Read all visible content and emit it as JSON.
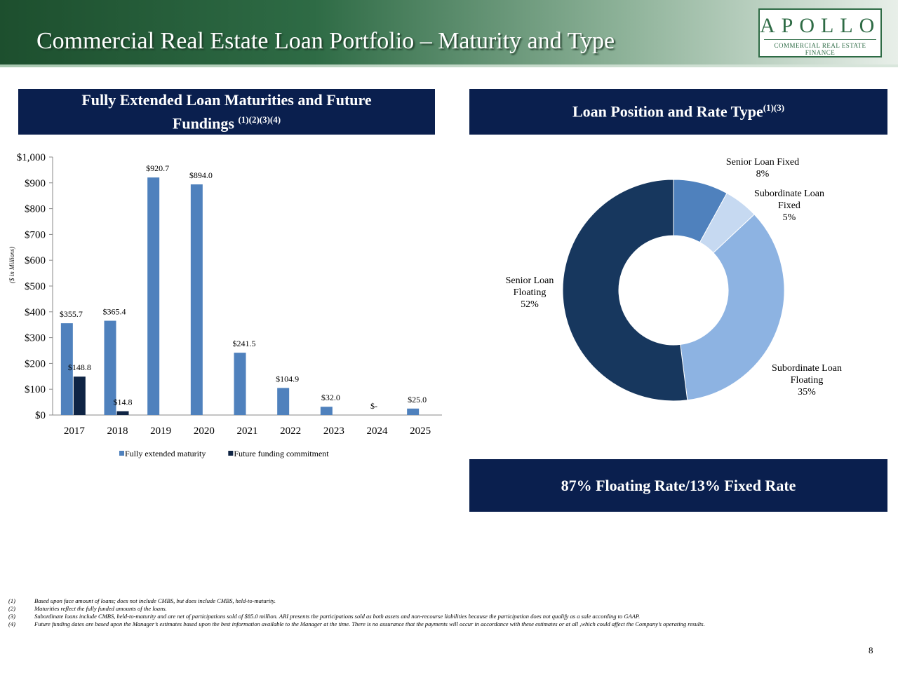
{
  "header": {
    "title": "Commercial Real Estate Loan Portfolio – Maturity and Type",
    "logo_main": "APOLLO",
    "logo_sub": "COMMERCIAL REAL ESTATE FINANCE"
  },
  "chart_data": [
    {
      "type": "bar",
      "title": "Fully Extended Loan Maturities and Future Fundings",
      "title_note": "(1)(2)(3)(4)",
      "y_label": "($ in Millions)",
      "categories": [
        "2017",
        "2018",
        "2019",
        "2020",
        "2021",
        "2022",
        "2023",
        "2024",
        "2025"
      ],
      "series": [
        {
          "name": "Fully extended maturity",
          "color": "#4f81bd",
          "values": [
            355.7,
            365.4,
            920.7,
            894.0,
            241.5,
            104.9,
            32.0,
            0,
            25.0
          ],
          "value_labels": [
            "$355.7",
            "$365.4",
            "$920.7",
            "$894.0",
            "$241.5",
            "$104.9",
            "$32.0",
            "$-",
            "$25.0"
          ]
        },
        {
          "name": "Future funding commitment",
          "color": "#0f2444",
          "values": [
            148.8,
            14.8,
            null,
            null,
            null,
            null,
            null,
            null,
            null
          ],
          "value_labels": [
            "$148.8",
            "$14.8",
            null,
            null,
            null,
            null,
            null,
            null,
            null
          ]
        }
      ],
      "ylim": [
        0,
        1000
      ],
      "yticks": [
        {
          "value": 0,
          "label": "$0"
        },
        {
          "value": 100,
          "label": "$100"
        },
        {
          "value": 200,
          "label": "$200"
        },
        {
          "value": 300,
          "label": "$300"
        },
        {
          "value": 400,
          "label": "$400"
        },
        {
          "value": 500,
          "label": "$500"
        },
        {
          "value": 600,
          "label": "$600"
        },
        {
          "value": 700,
          "label": "$700"
        },
        {
          "value": 800,
          "label": "$800"
        },
        {
          "value": 900,
          "label": "$900"
        },
        {
          "value": 1000,
          "label": "$1,000"
        }
      ],
      "grid": false,
      "legend": "bottom"
    },
    {
      "type": "pie",
      "title": "Loan Position and Rate Type",
      "title_note": "(1)(3)",
      "categories": [
        "Senior Loan Fixed",
        "Subordinate Loan Fixed",
        "Subordinate Loan Floating",
        "Senior Loan Floating"
      ],
      "values": [
        8,
        5,
        35,
        52
      ],
      "value_labels": [
        "8%",
        "5%",
        "35%",
        "52%"
      ],
      "colors": [
        "#4f81bd",
        "#c6d9f1",
        "#8db3e2",
        "#17375e"
      ],
      "donut": true,
      "annotation": "87% Floating Rate/13% Fixed Rate"
    }
  ],
  "footnotes": [
    {
      "marker": "(1)",
      "text": "Based upon face amount of loans; does not include CMBS, but does include CMBS, held-to-maturity."
    },
    {
      "marker": "(2)",
      "text": "Maturities reflect the fully funded amounts of the loans."
    },
    {
      "marker": "(3)",
      "text": "Subordinate loans include CMBS, held-to-maturity and are net of participations sold of $85.0 million.  ARI presents the participations sold as both assets and non-recourse liabilities because the participation does not qualify as a sale according to GAAP."
    },
    {
      "marker": "(4)",
      "text": "Future funding dates are based upon the Manager’s estimates based upon the best information available to the Manager at the time.  There is no assurance that the payments will occur in accordance with these estimates or at all ,which could affect the Company’s operating results."
    }
  ],
  "page_number": "8"
}
